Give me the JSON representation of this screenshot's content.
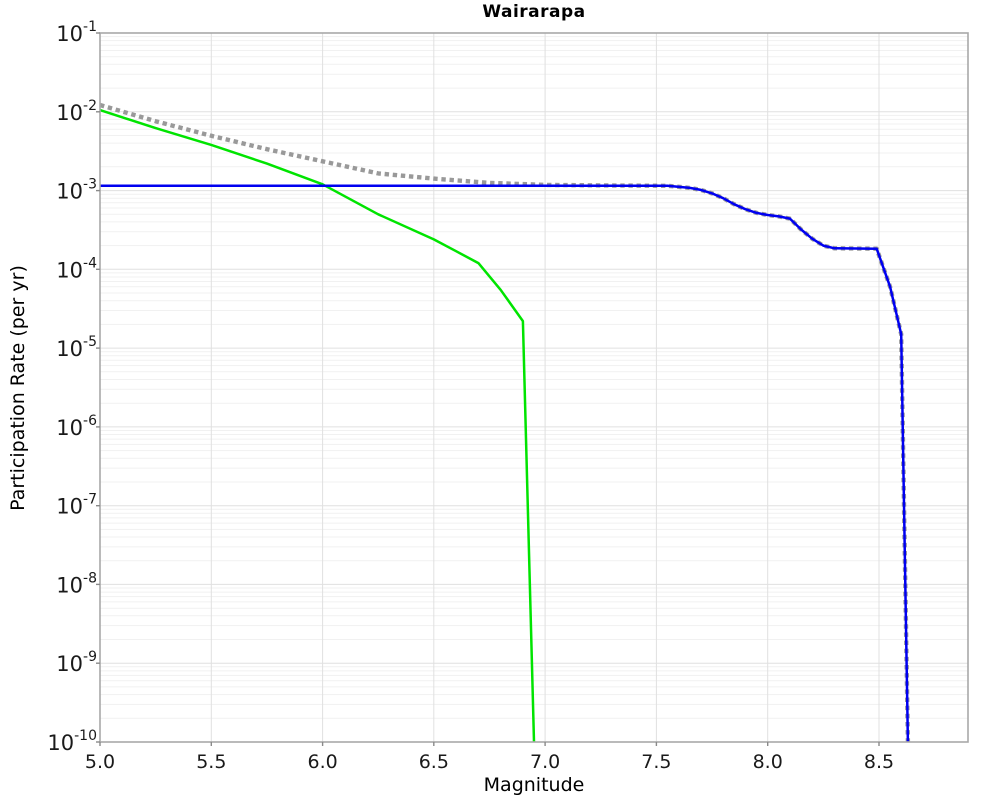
{
  "chart_data": {
    "type": "line",
    "title": "Wairarapa",
    "xlabel": "Magnitude",
    "ylabel": "Participation Rate (per yr)",
    "x_range": [
      5.0,
      8.9
    ],
    "y_log_range": [
      -10,
      -1
    ],
    "grid": true,
    "legend": "none",
    "x_ticks": [
      {
        "value": 5.0,
        "label": "5.0"
      },
      {
        "value": 5.5,
        "label": "5.5"
      },
      {
        "value": 6.0,
        "label": "6.0"
      },
      {
        "value": 6.5,
        "label": "6.5"
      },
      {
        "value": 7.0,
        "label": "7.0"
      },
      {
        "value": 7.5,
        "label": "7.5"
      },
      {
        "value": 8.0,
        "label": "8.0"
      },
      {
        "value": 8.5,
        "label": "8.5"
      }
    ],
    "y_tick_exponents": [
      "-1",
      "-2",
      "-3",
      "-4",
      "-5",
      "-6",
      "-7",
      "-8",
      "-9",
      "-10"
    ],
    "series": [
      {
        "name": "gray-dotted-line",
        "color": "#999999",
        "style": "dotted",
        "width": 4.4,
        "points": [
          [
            5.0,
            0.0122
          ],
          [
            5.25,
            0.0076
          ],
          [
            5.5,
            0.00495
          ],
          [
            5.75,
            0.00335
          ],
          [
            6.0,
            0.00235
          ],
          [
            6.25,
            0.00165
          ],
          [
            6.5,
            0.00142
          ],
          [
            6.75,
            0.00125
          ],
          [
            7.0,
            0.00118
          ],
          [
            7.3,
            0.00116
          ],
          [
            7.55,
            0.00115
          ],
          [
            7.65,
            0.00108
          ],
          [
            7.7,
            0.00102
          ],
          [
            7.75,
            0.00092
          ],
          [
            7.8,
            0.0008
          ],
          [
            7.85,
            0.00067
          ],
          [
            7.9,
            0.00058
          ],
          [
            7.95,
            0.00052
          ],
          [
            8.0,
            0.00049
          ],
          [
            8.05,
            0.00047
          ],
          [
            8.1,
            0.00044
          ],
          [
            8.15,
            0.00032
          ],
          [
            8.2,
            0.000245
          ],
          [
            8.25,
            0.0002
          ],
          [
            8.3,
            0.000185
          ],
          [
            8.49,
            0.000183
          ],
          [
            8.55,
            6e-05
          ],
          [
            8.58,
            2.6e-05
          ],
          [
            8.6,
            1.5e-05
          ],
          [
            8.63,
            1e-10
          ]
        ]
      },
      {
        "name": "green-line",
        "color": "#00e400",
        "style": "solid",
        "width": 2.5,
        "points": [
          [
            5.0,
            0.0105
          ],
          [
            5.25,
            0.0062
          ],
          [
            5.5,
            0.0038
          ],
          [
            5.75,
            0.0022
          ],
          [
            6.0,
            0.0012
          ],
          [
            6.25,
            0.0005
          ],
          [
            6.5,
            0.00024
          ],
          [
            6.6,
            0.00017
          ],
          [
            6.7,
            0.00012
          ],
          [
            6.8,
            5.5e-05
          ],
          [
            6.9,
            2.2e-05
          ],
          [
            6.95,
            1e-10
          ]
        ]
      },
      {
        "name": "blue-line",
        "color": "#0000f0",
        "style": "solid",
        "width": 2.5,
        "points": [
          [
            5.0,
            0.00115
          ],
          [
            7.55,
            0.00115
          ],
          [
            7.65,
            0.00108
          ],
          [
            7.7,
            0.00102
          ],
          [
            7.75,
            0.00092
          ],
          [
            7.8,
            0.0008
          ],
          [
            7.85,
            0.00067
          ],
          [
            7.9,
            0.00058
          ],
          [
            7.95,
            0.00052
          ],
          [
            8.0,
            0.00049
          ],
          [
            8.05,
            0.00047
          ],
          [
            8.1,
            0.00044
          ],
          [
            8.15,
            0.00032
          ],
          [
            8.2,
            0.000245
          ],
          [
            8.25,
            0.0002
          ],
          [
            8.3,
            0.000185
          ],
          [
            8.49,
            0.000183
          ],
          [
            8.55,
            6e-05
          ],
          [
            8.58,
            2.6e-05
          ],
          [
            8.6,
            1.5e-05
          ],
          [
            8.63,
            1e-10
          ]
        ]
      }
    ],
    "colors": {
      "frame": "#a8a8a8",
      "grid_major": "#e0e0e0",
      "grid_minor": "#f1f1f1",
      "tick": "#8a8a8a",
      "text": "#1a1a1a"
    }
  }
}
